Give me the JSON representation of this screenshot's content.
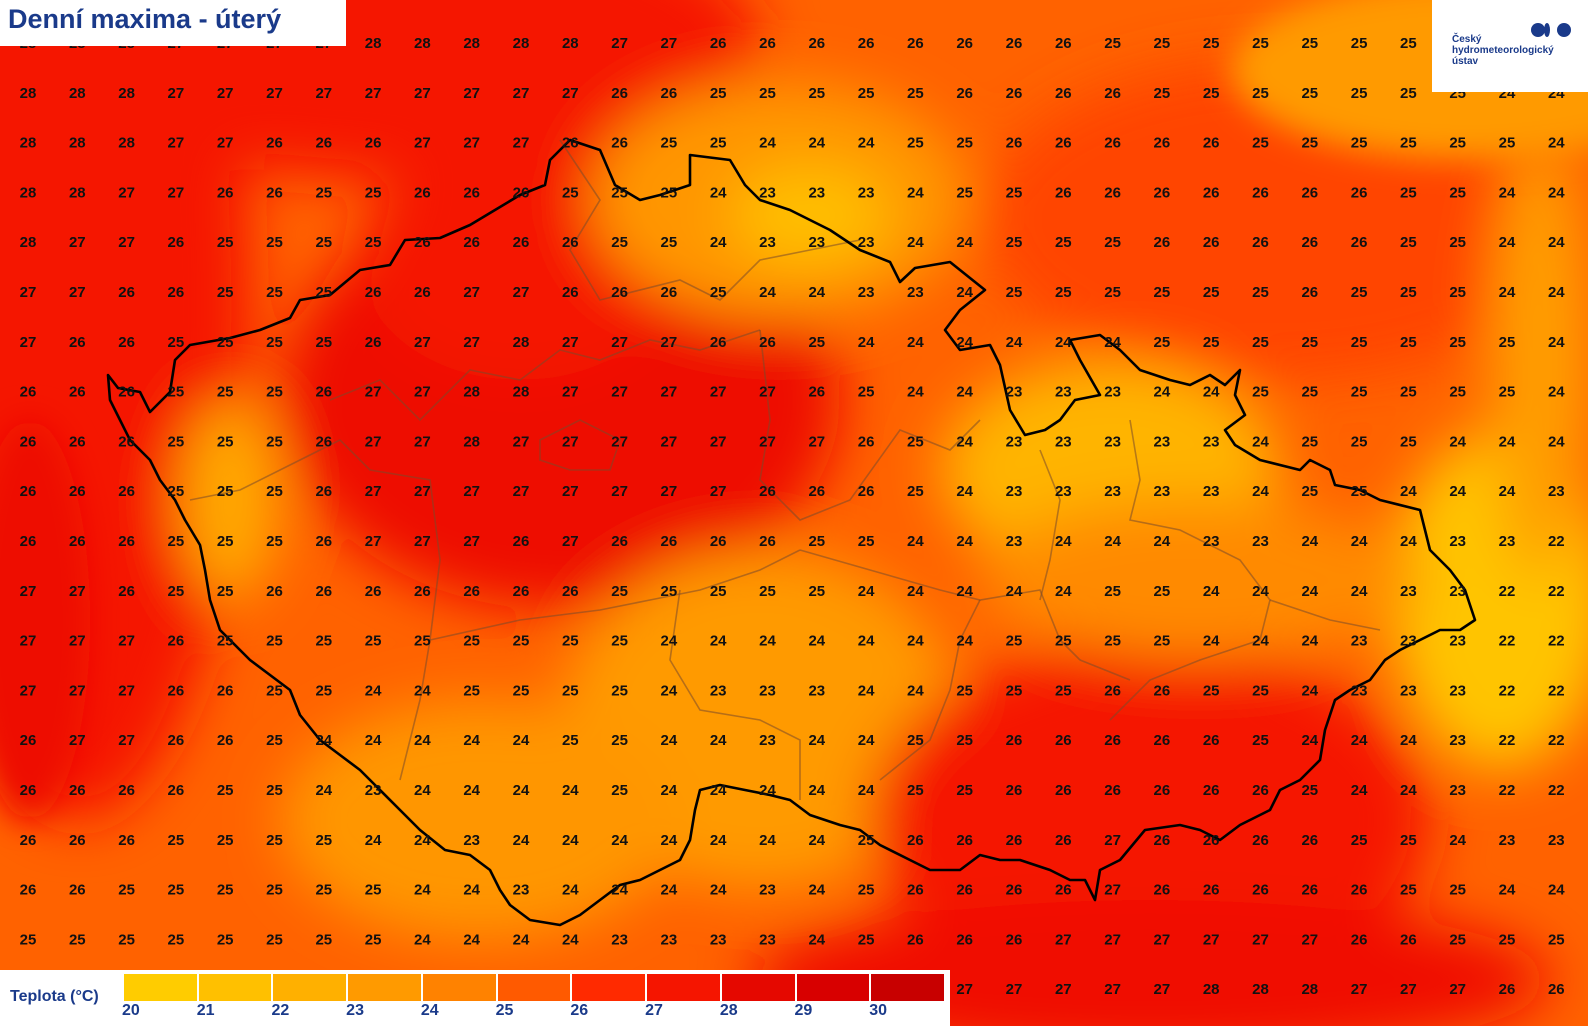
{
  "title": "Denní maxima - úterý",
  "logo": {
    "line1": "Český",
    "line2": "hydrometeorologický",
    "line3": "ústav"
  },
  "legend": {
    "label": "Teplota (°C)",
    "ticks": [
      "20",
      "21",
      "22",
      "23",
      "24",
      "25",
      "26",
      "27",
      "28",
      "29",
      "30"
    ],
    "colors": [
      "#ffcc00",
      "#ffc000",
      "#ffb000",
      "#ff9a00",
      "#ff8200",
      "#ff5a00",
      "#ff2a00",
      "#f51500",
      "#e50800",
      "#d80000",
      "#c80000"
    ]
  },
  "grid_values": [
    [
      "28",
      "28",
      "28",
      "27",
      "27",
      "27",
      "27",
      "28",
      "28",
      "28",
      "28",
      "28",
      "27",
      "27",
      "26",
      "26",
      "26",
      "26",
      "26",
      "26",
      "26",
      "26",
      "25",
      "25",
      "25",
      "25",
      "25",
      "25",
      "25",
      "25",
      "25",
      "25"
    ],
    [
      "28",
      "28",
      "28",
      "27",
      "27",
      "27",
      "27",
      "27",
      "27",
      "27",
      "27",
      "27",
      "26",
      "26",
      "25",
      "25",
      "25",
      "25",
      "25",
      "26",
      "26",
      "26",
      "26",
      "25",
      "25",
      "25",
      "25",
      "25",
      "25",
      "25",
      "24",
      "24"
    ],
    [
      "28",
      "28",
      "28",
      "27",
      "27",
      "26",
      "26",
      "26",
      "27",
      "27",
      "27",
      "26",
      "26",
      "25",
      "25",
      "24",
      "24",
      "24",
      "25",
      "25",
      "26",
      "26",
      "26",
      "26",
      "26",
      "25",
      "25",
      "25",
      "25",
      "25",
      "25",
      "24"
    ],
    [
      "28",
      "28",
      "27",
      "27",
      "26",
      "26",
      "25",
      "25",
      "26",
      "26",
      "26",
      "25",
      "25",
      "25",
      "24",
      "23",
      "23",
      "23",
      "24",
      "25",
      "25",
      "26",
      "26",
      "26",
      "26",
      "26",
      "26",
      "26",
      "25",
      "25",
      "24",
      "24"
    ],
    [
      "28",
      "27",
      "27",
      "26",
      "25",
      "25",
      "25",
      "25",
      "26",
      "26",
      "26",
      "26",
      "25",
      "25",
      "24",
      "23",
      "23",
      "23",
      "24",
      "24",
      "25",
      "25",
      "25",
      "26",
      "26",
      "26",
      "26",
      "26",
      "25",
      "25",
      "24",
      "24"
    ],
    [
      "27",
      "27",
      "26",
      "26",
      "25",
      "25",
      "25",
      "26",
      "26",
      "27",
      "27",
      "26",
      "26",
      "26",
      "25",
      "24",
      "24",
      "23",
      "23",
      "24",
      "25",
      "25",
      "25",
      "25",
      "25",
      "25",
      "26",
      "25",
      "25",
      "25",
      "24",
      "24"
    ],
    [
      "27",
      "26",
      "26",
      "25",
      "25",
      "25",
      "25",
      "26",
      "27",
      "27",
      "28",
      "27",
      "27",
      "27",
      "26",
      "26",
      "25",
      "24",
      "24",
      "24",
      "24",
      "24",
      "24",
      "25",
      "25",
      "25",
      "25",
      "25",
      "25",
      "25",
      "25",
      "24"
    ],
    [
      "26",
      "26",
      "26",
      "25",
      "25",
      "25",
      "26",
      "27",
      "27",
      "28",
      "28",
      "27",
      "27",
      "27",
      "27",
      "27",
      "26",
      "25",
      "24",
      "24",
      "23",
      "23",
      "23",
      "24",
      "24",
      "25",
      "25",
      "25",
      "25",
      "25",
      "25",
      "24"
    ],
    [
      "26",
      "26",
      "26",
      "25",
      "25",
      "25",
      "26",
      "27",
      "27",
      "28",
      "27",
      "27",
      "27",
      "27",
      "27",
      "27",
      "27",
      "26",
      "25",
      "24",
      "23",
      "23",
      "23",
      "23",
      "23",
      "24",
      "25",
      "25",
      "25",
      "24",
      "24",
      "24"
    ],
    [
      "26",
      "26",
      "26",
      "25",
      "25",
      "25",
      "26",
      "27",
      "27",
      "27",
      "27",
      "27",
      "27",
      "27",
      "27",
      "26",
      "26",
      "26",
      "25",
      "24",
      "23",
      "23",
      "23",
      "23",
      "23",
      "24",
      "25",
      "25",
      "24",
      "24",
      "24",
      "23"
    ],
    [
      "26",
      "26",
      "26",
      "25",
      "25",
      "25",
      "26",
      "27",
      "27",
      "27",
      "26",
      "27",
      "26",
      "26",
      "26",
      "26",
      "25",
      "25",
      "24",
      "24",
      "23",
      "24",
      "24",
      "24",
      "23",
      "23",
      "24",
      "24",
      "24",
      "23",
      "23",
      "22"
    ],
    [
      "27",
      "27",
      "26",
      "25",
      "25",
      "26",
      "26",
      "26",
      "26",
      "26",
      "26",
      "26",
      "25",
      "25",
      "25",
      "25",
      "25",
      "24",
      "24",
      "24",
      "24",
      "24",
      "25",
      "25",
      "24",
      "24",
      "24",
      "24",
      "23",
      "23",
      "22",
      "22"
    ],
    [
      "27",
      "27",
      "27",
      "26",
      "25",
      "25",
      "25",
      "25",
      "25",
      "25",
      "25",
      "25",
      "25",
      "24",
      "24",
      "24",
      "24",
      "24",
      "24",
      "24",
      "25",
      "25",
      "25",
      "25",
      "24",
      "24",
      "24",
      "23",
      "23",
      "23",
      "22",
      "22"
    ],
    [
      "27",
      "27",
      "27",
      "26",
      "26",
      "25",
      "25",
      "24",
      "24",
      "25",
      "25",
      "25",
      "25",
      "24",
      "23",
      "23",
      "23",
      "24",
      "24",
      "25",
      "25",
      "25",
      "26",
      "26",
      "25",
      "25",
      "24",
      "23",
      "23",
      "23",
      "22",
      "22"
    ],
    [
      "26",
      "27",
      "27",
      "26",
      "26",
      "25",
      "24",
      "24",
      "24",
      "24",
      "24",
      "25",
      "25",
      "24",
      "24",
      "23",
      "24",
      "24",
      "25",
      "25",
      "26",
      "26",
      "26",
      "26",
      "26",
      "25",
      "24",
      "24",
      "24",
      "23",
      "22",
      "22"
    ],
    [
      "26",
      "26",
      "26",
      "26",
      "25",
      "25",
      "24",
      "23",
      "24",
      "24",
      "24",
      "24",
      "25",
      "24",
      "24",
      "24",
      "24",
      "24",
      "25",
      "25",
      "26",
      "26",
      "26",
      "26",
      "26",
      "26",
      "25",
      "24",
      "24",
      "23",
      "22",
      "22"
    ],
    [
      "26",
      "26",
      "26",
      "25",
      "25",
      "25",
      "25",
      "24",
      "24",
      "23",
      "24",
      "24",
      "24",
      "24",
      "24",
      "24",
      "24",
      "25",
      "26",
      "26",
      "26",
      "26",
      "27",
      "26",
      "26",
      "26",
      "26",
      "25",
      "25",
      "24",
      "23",
      "23"
    ],
    [
      "26",
      "26",
      "25",
      "25",
      "25",
      "25",
      "25",
      "25",
      "24",
      "24",
      "23",
      "24",
      "24",
      "24",
      "24",
      "23",
      "24",
      "25",
      "26",
      "26",
      "26",
      "26",
      "27",
      "26",
      "26",
      "26",
      "26",
      "26",
      "25",
      "25",
      "24",
      "24"
    ],
    [
      "25",
      "25",
      "25",
      "25",
      "25",
      "25",
      "25",
      "25",
      "24",
      "24",
      "24",
      "24",
      "23",
      "23",
      "23",
      "23",
      "24",
      "25",
      "26",
      "26",
      "26",
      "27",
      "27",
      "27",
      "27",
      "27",
      "27",
      "26",
      "26",
      "25",
      "25",
      "25"
    ],
    [
      "",
      "",
      "",
      "",
      "",
      "",
      "",
      "",
      "",
      "",
      "",
      "",
      "",
      "",
      "",
      "",
      "",
      "",
      "",
      "27",
      "27",
      "27",
      "27",
      "27",
      "28",
      "28",
      "28",
      "27",
      "27",
      "27",
      "26",
      "26"
    ]
  ]
}
